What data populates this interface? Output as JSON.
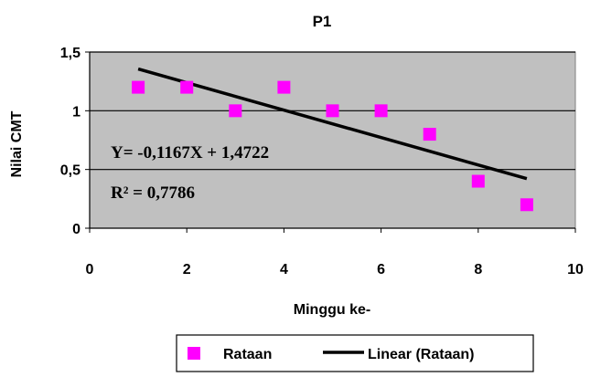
{
  "chart_data": {
    "type": "scatter",
    "title": "P1",
    "xlabel": "Minggu ke-",
    "ylabel": "Nilai CMT",
    "xlim": [
      0,
      10
    ],
    "ylim": [
      0,
      1.5
    ],
    "x_ticks": [
      "0",
      "2",
      "4",
      "6",
      "8",
      "10"
    ],
    "y_ticks": [
      "0",
      "0,5",
      "1",
      "1,5"
    ],
    "grid": true,
    "legend_position": "bottom",
    "series": [
      {
        "name": "Rataan",
        "marker": "square",
        "color": "#ff00ff",
        "x": [
          1,
          2,
          3,
          4,
          5,
          6,
          7,
          8,
          9
        ],
        "y": [
          1.2,
          1.2,
          1.0,
          1.2,
          1.0,
          1.0,
          0.8,
          0.4,
          0.2
        ]
      },
      {
        "name": "Linear (Rataan)",
        "type": "line",
        "color": "#000000",
        "slope": -0.1167,
        "intercept": 1.4722,
        "x_range": [
          1,
          9
        ]
      }
    ],
    "annotations": {
      "equation": "Y= -0,1167X + 1,4722",
      "r_squared": "R² = 0,7786"
    },
    "plot_background": "#c0c0c0"
  }
}
